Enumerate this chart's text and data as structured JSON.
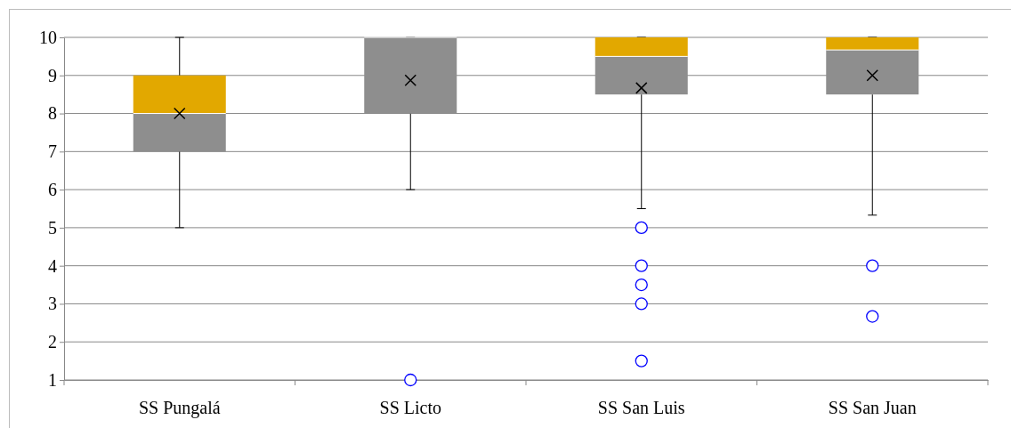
{
  "chart_data": {
    "type": "box",
    "categories": [
      "SS Pungalá",
      "SS Licto",
      "SS San Luis",
      "SS San Juan"
    ],
    "boxes": [
      {
        "low": 5,
        "q1": 7,
        "median": 8,
        "q3": 9,
        "high": 10,
        "mean": 8
      },
      {
        "low": 6,
        "q1": 8,
        "median": 10,
        "q3": 10,
        "high": 10,
        "mean": 8.87,
        "outliers": [
          1
        ]
      },
      {
        "low": 5.5,
        "q1": 8.5,
        "median": 9.5,
        "q3": 10,
        "high": 10,
        "mean": 8.67,
        "outliers": [
          5,
          4,
          3.5,
          3,
          1.5
        ]
      },
      {
        "low": 5.33,
        "q1": 8.5,
        "median": 9.67,
        "q3": 10,
        "high": 10,
        "mean": 9,
        "outliers": [
          4,
          2.67
        ]
      }
    ],
    "color": [
      "#8e8e8e",
      "#e2a800"
    ],
    "ylim": [
      1,
      10
    ],
    "yticks": [
      1,
      2,
      3,
      4,
      5,
      6,
      7,
      8,
      9,
      10
    ],
    "grid": "y"
  }
}
